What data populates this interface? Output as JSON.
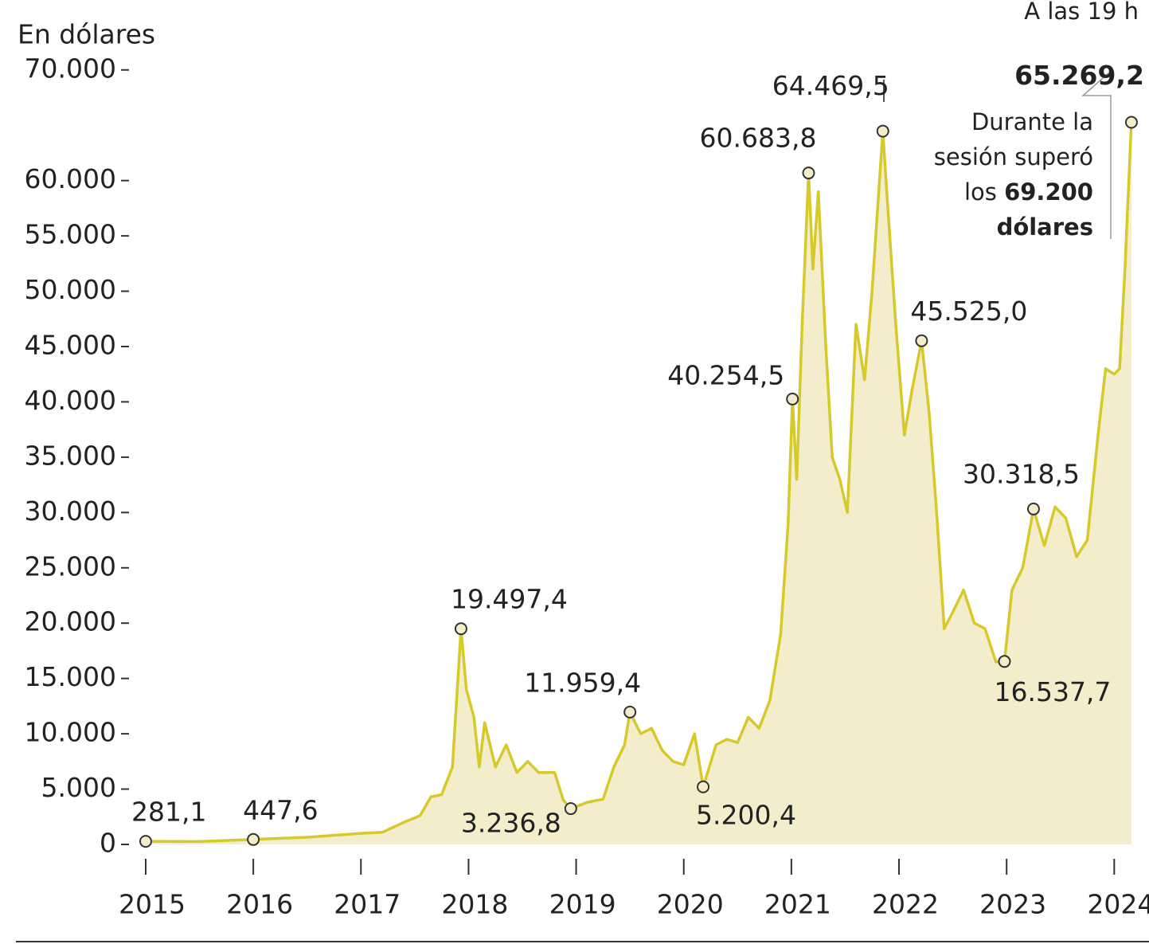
{
  "chart_data": {
    "type": "area",
    "y_label": "En dólares",
    "color": "#d6c92a",
    "fill": "#f4edcc",
    "x": [
      2015.0,
      2015.5,
      2016.0,
      2016.5,
      2017.0,
      2017.2,
      2017.4,
      2017.55,
      2017.65,
      2017.75,
      2017.85,
      2017.93,
      2017.98,
      2018.05,
      2018.1,
      2018.15,
      2018.25,
      2018.35,
      2018.45,
      2018.55,
      2018.65,
      2018.8,
      2018.88,
      2018.95,
      2019.1,
      2019.25,
      2019.35,
      2019.45,
      2019.5,
      2019.6,
      2019.7,
      2019.8,
      2019.9,
      2020.0,
      2020.1,
      2020.18,
      2020.3,
      2020.4,
      2020.5,
      2020.6,
      2020.7,
      2020.8,
      2020.9,
      2020.97,
      2021.01,
      2021.05,
      2021.1,
      2021.16,
      2021.2,
      2021.25,
      2021.32,
      2021.38,
      2021.45,
      2021.52,
      2021.6,
      2021.68,
      2021.75,
      2021.85,
      2021.9,
      2021.97,
      2022.05,
      2022.12,
      2022.21,
      2022.28,
      2022.35,
      2022.42,
      2022.5,
      2022.6,
      2022.7,
      2022.8,
      2022.9,
      2022.98,
      2023.05,
      2023.15,
      2023.25,
      2023.35,
      2023.45,
      2023.55,
      2023.65,
      2023.75,
      2023.85,
      2023.92,
      2024.0,
      2024.05,
      2024.1,
      2024.16
    ],
    "values": [
      281.1,
      260,
      447.6,
      650,
      1000,
      1100,
      2000,
      2600,
      4300,
      4500,
      7000,
      19497.4,
      14000,
      11500,
      7000,
      11000,
      7000,
      9000,
      6500,
      7500,
      6500,
      6500,
      4000,
      3236.8,
      3800,
      4100,
      7000,
      9000,
      11959.4,
      10000,
      10500,
      8500,
      7500,
      7200,
      10000,
      5200.4,
      9000,
      9500,
      9200,
      11500,
      10500,
      13000,
      19000,
      29000,
      40254.5,
      33000,
      47000,
      60683.8,
      52000,
      59000,
      45000,
      35000,
      33000,
      30000,
      47000,
      42000,
      50000,
      64469.5,
      57000,
      47000,
      37000,
      41000,
      45525.0,
      39000,
      30000,
      19500,
      21000,
      23000,
      20000,
      19500,
      16500,
      16537.7,
      23000,
      25000,
      30318.5,
      27000,
      30500,
      29500,
      26000,
      27500,
      37000,
      43000,
      42500,
      43000,
      52000,
      65269.2
    ],
    "xlim": [
      2014.83,
      2024.19
    ],
    "xticks": [
      2015,
      2016,
      2017,
      2018,
      2019,
      2020,
      2021,
      2022,
      2023,
      2024
    ],
    "ylim": [
      0,
      72000
    ],
    "yticks": [
      0,
      {
        "value": 5000,
        "label": "5.000"
      },
      {
        "value": 10000,
        "label": "10.000"
      },
      {
        "value": 15000,
        "label": "15.000"
      },
      {
        "value": 20000,
        "label": "20.000"
      },
      {
        "value": 25000,
        "label": "25.000"
      },
      {
        "value": 30000,
        "label": "30.000"
      },
      {
        "value": 35000,
        "label": "35.000"
      },
      {
        "value": 40000,
        "label": "40.000"
      },
      {
        "value": 45000,
        "label": "45.000"
      },
      {
        "value": 50000,
        "label": "50.000"
      },
      {
        "value": 55000,
        "label": "55.000"
      },
      {
        "value": 60000,
        "label": "60.000"
      },
      {
        "value": 70000,
        "label": "70.000"
      }
    ],
    "highlights": {
      "x": [
        2015.0,
        2016.0,
        2017.93,
        2018.95,
        2019.5,
        2020.18,
        2021.01,
        2021.16,
        2021.85,
        2022.21,
        2022.98,
        2023.25,
        2024.16
      ],
      "values": [
        281.1,
        447.6,
        19497.4,
        3236.8,
        11959.4,
        5200.4,
        40254.5,
        60683.8,
        64469.5,
        45525.0,
        16537.7,
        30318.5,
        65269.2
      ],
      "value_labels": [
        "281,1",
        "447,6",
        "19.497,4",
        "3.236,8",
        "11.959,4",
        "5.200,4",
        "40.254,5",
        "60.683,8",
        "64.469,5",
        "45.525,0",
        "16.537,7",
        "30.318,5",
        "65.269,2"
      ]
    },
    "time_note": "A las 19 h",
    "note_lines": [
      "Durante la",
      "sesión superó",
      "los"
    ],
    "note_bold": [
      "69.200",
      "dólares"
    ]
  }
}
